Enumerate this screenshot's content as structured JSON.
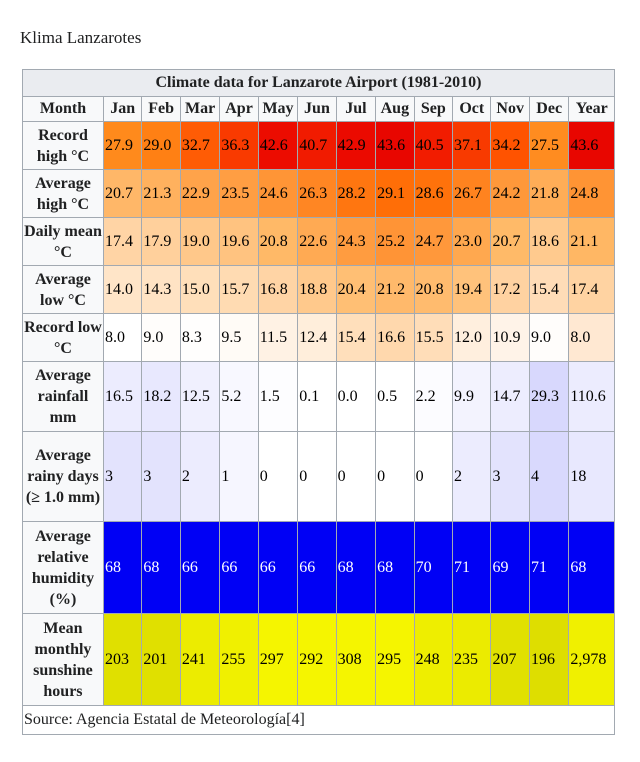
{
  "page_title": "Klima Lanzarotes",
  "table": {
    "caption": "Climate data for Lanzarote Airport (1981-2010)",
    "month_header": "Month",
    "months": [
      "Jan",
      "Feb",
      "Mar",
      "Apr",
      "May",
      "Jun",
      "Jul",
      "Aug",
      "Sep",
      "Oct",
      "Nov",
      "Dec"
    ],
    "year_header": "Year",
    "rows": [
      {
        "label": "Record high °C",
        "values": [
          "27.9",
          "29.0",
          "32.7",
          "36.3",
          "42.6",
          "40.7",
          "42.9",
          "43.6",
          "40.5",
          "37.1",
          "34.2",
          "27.5"
        ],
        "year": "43.6",
        "colors": [
          "#ff8a1c",
          "#ff8014",
          "#ff5c05",
          "#f93a00",
          "#ec0c00",
          "#f11b00",
          "#eb0a00",
          "#e80600",
          "#f21c00",
          "#f83a00",
          "#ff5300",
          "#ff8c20"
        ],
        "year_color": "#e80600",
        "text_color": "#000000"
      },
      {
        "label": "Average high °C",
        "values": [
          "20.7",
          "21.3",
          "22.9",
          "23.5",
          "24.6",
          "26.3",
          "28.2",
          "29.1",
          "28.6",
          "26.7",
          "24.2",
          "21.8"
        ],
        "year": "24.8",
        "colors": [
          "#ffb768",
          "#ffb15e",
          "#ffa34a",
          "#ff9e43",
          "#ff9536",
          "#ff8623",
          "#ff7610",
          "#ff6e07",
          "#ff720b",
          "#ff831f",
          "#ff983a",
          "#ffad57"
        ],
        "year_color": "#ff9434",
        "text_color": "#000000"
      },
      {
        "label": "Daily mean °C",
        "values": [
          "17.4",
          "17.9",
          "19.0",
          "19.6",
          "20.8",
          "22.6",
          "24.3",
          "25.2",
          "24.7",
          "23.0",
          "20.7",
          "18.6"
        ],
        "year": "21.1",
        "colors": [
          "#ffd4a5",
          "#ffd09c",
          "#ffc88a",
          "#ffc380",
          "#ffb967",
          "#ffaa53",
          "#ff9c40",
          "#ff9436",
          "#ff983b",
          "#ffa84f",
          "#ffba68",
          "#ffca8e"
        ],
        "year_color": "#ffb764",
        "text_color": "#000000"
      },
      {
        "label": "Average low °C",
        "values": [
          "14.0",
          "14.3",
          "15.0",
          "15.7",
          "16.8",
          "18.8",
          "20.4",
          "21.2",
          "20.8",
          "19.4",
          "17.2",
          "15.4"
        ],
        "year": "17.4",
        "colors": [
          "#ffe5c8",
          "#ffe3c4",
          "#ffdfba",
          "#ffdbb2",
          "#ffd4a5",
          "#ffc98c",
          "#ffbf74",
          "#ffb96b",
          "#ffbb6e",
          "#ffc27b",
          "#ffd2a1",
          "#ffdcb7"
        ],
        "year_color": "#ffd3a2",
        "text_color": "#000000"
      },
      {
        "label": "Record low °C",
        "values": [
          "8.0",
          "9.0",
          "8.3",
          "9.5",
          "11.5",
          "12.4",
          "15.4",
          "16.6",
          "15.5",
          "12.0",
          "10.9",
          "9.0"
        ],
        "year": "8.0",
        "colors": [
          "#ffffff",
          "#fffdfb",
          "#fffefd",
          "#fffbf6",
          "#fff2e4",
          "#ffeedb",
          "#ffdfbb",
          "#ffd8ad",
          "#ffddb8",
          "#ffefde",
          "#fff3e8",
          "#fffdfb"
        ],
        "year_color": "#ffe8d2",
        "text_color": "#000000"
      },
      {
        "label": "Average rainfall mm",
        "values": [
          "16.5",
          "18.2",
          "12.5",
          "5.2",
          "1.5",
          "0.1",
          "0.0",
          "0.5",
          "2.2",
          "9.9",
          "14.7",
          "29.3"
        ],
        "year": "110.6",
        "colors": [
          "#ececfe",
          "#e8e8fe",
          "#f0f0fe",
          "#f8f8ff",
          "#fdfdff",
          "#ffffff",
          "#ffffff",
          "#ffffff",
          "#fcfcff",
          "#f3f3fe",
          "#ededfe",
          "#d8d8fd"
        ],
        "year_color": "#ececfe",
        "text_color": "#000000"
      },
      {
        "label": "Average rainy days (≥ 1.0 mm)",
        "values": [
          "3",
          "3",
          "2",
          "1",
          "0",
          "0",
          "0",
          "0",
          "0",
          "2",
          "3",
          "4"
        ],
        "year": "18",
        "colors": [
          "#e3e3fd",
          "#e3e3fd",
          "#ececfe",
          "#f6f6ff",
          "#ffffff",
          "#ffffff",
          "#ffffff",
          "#ffffff",
          "#ffffff",
          "#ececfe",
          "#e3e3fd",
          "#d9d9fd"
        ],
        "year_color": "#e8e8fe",
        "text_color": "#000000"
      },
      {
        "label": "Average relative humidity (%)",
        "values": [
          "68",
          "68",
          "66",
          "66",
          "66",
          "66",
          "68",
          "68",
          "70",
          "71",
          "69",
          "71"
        ],
        "year": "68",
        "colors": [
          "#0000f5",
          "#0000f5",
          "#0000f5",
          "#0000f5",
          "#0000f5",
          "#0000f5",
          "#0000f5",
          "#0000f5",
          "#0000f5",
          "#0000f5",
          "#0000f5",
          "#0000f5"
        ],
        "year_color": "#0000f5",
        "text_color": "#ffffff"
      },
      {
        "label": "Mean monthly sunshine hours",
        "values": [
          "203",
          "201",
          "241",
          "255",
          "297",
          "292",
          "308",
          "295",
          "248",
          "235",
          "207",
          "196"
        ],
        "year": "2,978",
        "colors": [
          "#e0e000",
          "#e0e000",
          "#ecec00",
          "#f0f000",
          "#f5f500",
          "#f5f500",
          "#f5f500",
          "#f5f500",
          "#eeee00",
          "#ebeb00",
          "#e1e100",
          "#dede00"
        ],
        "year_color": "#f0f000",
        "text_color": "#000000"
      }
    ],
    "source": "Source: Agencia Estatal de Meteorología[4]"
  }
}
